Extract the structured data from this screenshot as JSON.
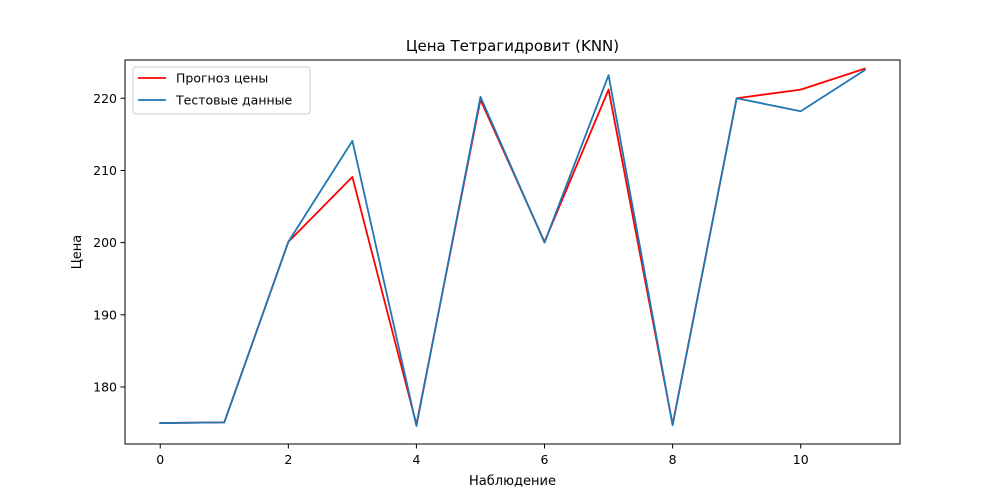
{
  "chart_data": {
    "type": "line",
    "title": "Цена Тетрагидровит  (KNN)",
    "xlabel": "Наблюдение",
    "ylabel": "Цена",
    "x": [
      0,
      1,
      2,
      3,
      4,
      5,
      6,
      7,
      8,
      9,
      10,
      11
    ],
    "xlim": [
      -0.55,
      11.55
    ],
    "ylim": [
      172.1,
      225.3
    ],
    "xticks": [
      0,
      2,
      4,
      6,
      8,
      10
    ],
    "yticks": [
      180,
      190,
      200,
      210,
      220
    ],
    "grid": false,
    "legend_position": "top-left",
    "series": [
      {
        "name": "Прогноз цены",
        "color": "#ff0000",
        "values": [
          175.0,
          175.1,
          200.1,
          209.1,
          174.8,
          219.8,
          200.1,
          221.2,
          174.8,
          220.0,
          221.2,
          224.1
        ]
      },
      {
        "name": "Тестовые данные",
        "color": "#1f77b4",
        "values": [
          175.0,
          175.1,
          200.1,
          214.1,
          174.6,
          220.2,
          200.0,
          223.2,
          174.7,
          220.0,
          218.2,
          223.9
        ]
      }
    ]
  }
}
